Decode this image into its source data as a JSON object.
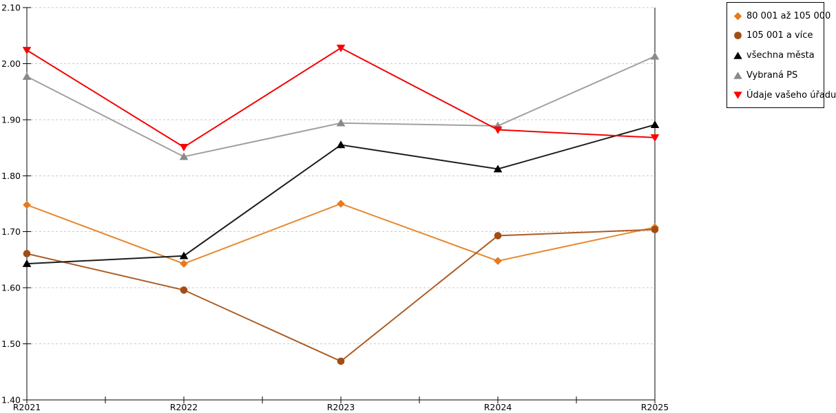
{
  "chart_data": {
    "type": "line",
    "title": "",
    "xlabel": "",
    "ylabel": "",
    "categories": [
      "R2021",
      "R2022",
      "R2023",
      "R2024",
      "R2025"
    ],
    "series": [
      {
        "name": "80 001 až 105 000",
        "marker": "diamond",
        "marker_color": "#E87A1C",
        "line_color": "#E8882F",
        "values": [
          1.748,
          1.643,
          1.75,
          1.648,
          1.708
        ]
      },
      {
        "name": "105 001 a více",
        "marker": "circle",
        "marker_color": "#A24D16",
        "line_color": "#AC5B22",
        "values": [
          1.661,
          1.596,
          1.469,
          1.693,
          1.704
        ]
      },
      {
        "name": "všechna města",
        "marker": "triangle-up",
        "marker_color": "#000000",
        "line_color": "#1C1C1C",
        "values": [
          1.643,
          1.657,
          1.855,
          1.812,
          1.891
        ]
      },
      {
        "name": "Vybraná PS",
        "marker": "triangle-up",
        "marker_color": "#8A8A8A",
        "line_color": "#A0A0A0",
        "values": [
          1.977,
          1.834,
          1.894,
          1.889,
          2.013
        ]
      },
      {
        "name": "Údaje vašeho úřadu",
        "marker": "triangle-down",
        "marker_color": "#FF0000",
        "line_color": "#F50000",
        "values": [
          2.024,
          1.851,
          2.028,
          1.882,
          1.868
        ]
      }
    ],
    "ylim": [
      1.4,
      2.1
    ],
    "ytick_step": 0.1,
    "yticks": [
      {
        "value": 1.4,
        "label": "1.40"
      },
      {
        "value": 1.5,
        "label": "1.50"
      },
      {
        "value": 1.6,
        "label": "1.60"
      },
      {
        "value": 1.7,
        "label": "1.70"
      },
      {
        "value": 1.8,
        "label": "1.80"
      },
      {
        "value": 1.9,
        "label": "1.90"
      },
      {
        "value": 2.0,
        "label": "2.00"
      },
      {
        "value": 2.1,
        "label": "2.10"
      }
    ],
    "grid": "horizontal-dashed",
    "grid_color": "#C9C9C9",
    "axis_color": "#000000",
    "legend_position": "outside-top-right",
    "x_minor_ticks": true
  }
}
